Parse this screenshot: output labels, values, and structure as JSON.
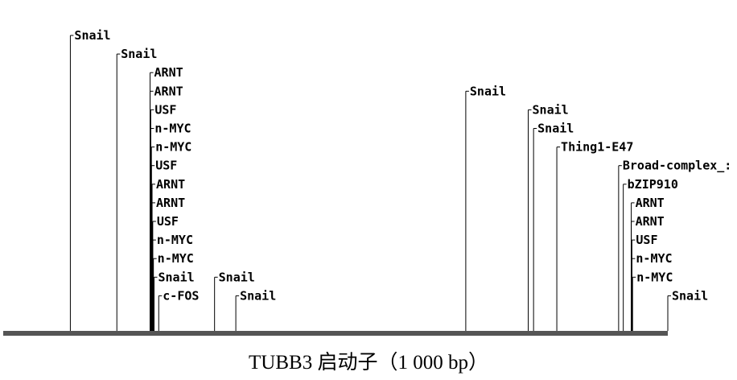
{
  "promoter": {
    "caption": "TUBB3 启动子（1 000 bp）",
    "length_bp": 1000
  },
  "binding_sites": [
    {
      "label": "Snail",
      "position": 101
    },
    {
      "label": "Snail",
      "position": 171
    },
    {
      "label": "ARNT",
      "position": 221
    },
    {
      "label": "ARNT",
      "position": 221
    },
    {
      "label": "USF",
      "position": 222
    },
    {
      "label": "n-MYC",
      "position": 222
    },
    {
      "label": "n-MYC",
      "position": 223
    },
    {
      "label": "USF",
      "position": 223
    },
    {
      "label": "ARNT",
      "position": 224
    },
    {
      "label": "ARNT",
      "position": 224
    },
    {
      "label": "USF",
      "position": 225
    },
    {
      "label": "n-MYC",
      "position": 225
    },
    {
      "label": "n-MYC",
      "position": 226
    },
    {
      "label": "Snail",
      "position": 227
    },
    {
      "label": "c-FOS",
      "position": 234
    },
    {
      "label": "Snail",
      "position": 318
    },
    {
      "label": "Snail",
      "position": 350
    },
    {
      "label": "Snail",
      "position": 696
    },
    {
      "label": "Snail",
      "position": 790
    },
    {
      "label": "Snail",
      "position": 798
    },
    {
      "label": "Thing1-E47",
      "position": 833
    },
    {
      "label": "Broad-complex_:",
      "position": 926
    },
    {
      "label": "bZIP910",
      "position": 933
    },
    {
      "label": "ARNT",
      "position": 945
    },
    {
      "label": "ARNT",
      "position": 945
    },
    {
      "label": "USF",
      "position": 946
    },
    {
      "label": "n-MYC",
      "position": 946
    },
    {
      "label": "n-MYC",
      "position": 947
    },
    {
      "label": "Snail",
      "position": 1000
    }
  ],
  "colors": {
    "line": "#000000",
    "baseline": "#555555"
  }
}
